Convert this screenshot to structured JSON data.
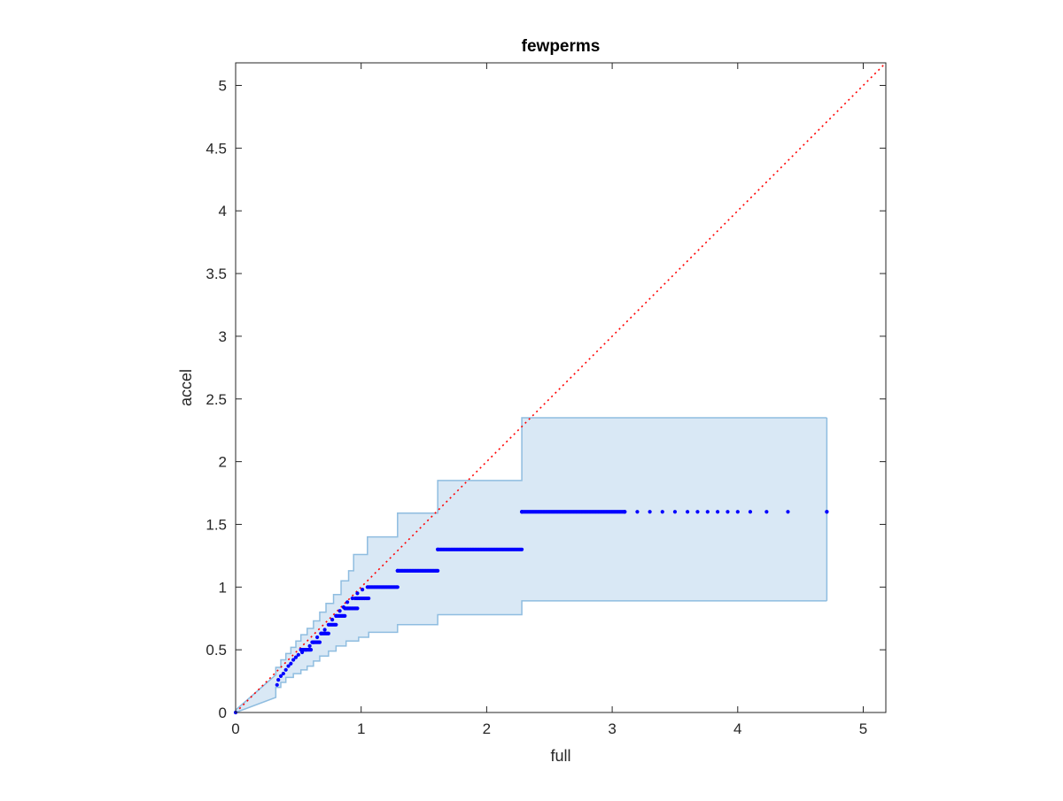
{
  "chart_data": {
    "type": "scatter",
    "title": "fewperms",
    "xlabel": "full",
    "ylabel": "accel",
    "xlim": [
      0,
      5.18
    ],
    "ylim": [
      0,
      5.18
    ],
    "x_ticks": [
      0,
      1,
      2,
      3,
      4,
      5
    ],
    "x_tick_labels": [
      "0",
      "1",
      "2",
      "3",
      "4",
      "5"
    ],
    "y_ticks": [
      0,
      0.5,
      1,
      1.5,
      2,
      2.5,
      3,
      3.5,
      4,
      4.5,
      5
    ],
    "y_tick_labels": [
      "0",
      "0.5",
      "1",
      "1.5",
      "2",
      "2.5",
      "3",
      "3.5",
      "4",
      "4.5",
      "5"
    ],
    "grid": false,
    "reference_line": {
      "style": "dotted",
      "color": "#ff0000",
      "from": [
        0,
        0
      ],
      "to": [
        5.18,
        5.18
      ]
    },
    "band": {
      "fill": "#d9e8f5",
      "stroke": "#8fbde0",
      "upper": [
        [
          0,
          0.02
        ],
        [
          0.32,
          0.3
        ],
        [
          0.32,
          0.36
        ],
        [
          0.36,
          0.36
        ],
        [
          0.36,
          0.42
        ],
        [
          0.4,
          0.42
        ],
        [
          0.4,
          0.47
        ],
        [
          0.44,
          0.47
        ],
        [
          0.44,
          0.52
        ],
        [
          0.48,
          0.52
        ],
        [
          0.48,
          0.57
        ],
        [
          0.52,
          0.57
        ],
        [
          0.52,
          0.62
        ],
        [
          0.57,
          0.62
        ],
        [
          0.57,
          0.67
        ],
        [
          0.62,
          0.67
        ],
        [
          0.62,
          0.73
        ],
        [
          0.67,
          0.73
        ],
        [
          0.67,
          0.8
        ],
        [
          0.72,
          0.8
        ],
        [
          0.72,
          0.87
        ],
        [
          0.78,
          0.87
        ],
        [
          0.78,
          0.94
        ],
        [
          0.84,
          0.94
        ],
        [
          0.84,
          1.05
        ],
        [
          0.9,
          1.05
        ],
        [
          0.9,
          1.13
        ],
        [
          0.94,
          1.13
        ],
        [
          0.94,
          1.26
        ],
        [
          1.05,
          1.26
        ],
        [
          1.05,
          1.4
        ],
        [
          1.29,
          1.4
        ],
        [
          1.29,
          1.59
        ],
        [
          1.61,
          1.59
        ],
        [
          1.61,
          1.85
        ],
        [
          2.28,
          1.85
        ],
        [
          2.28,
          2.35
        ],
        [
          4.71,
          2.35
        ]
      ],
      "lower": [
        [
          0,
          0.0
        ],
        [
          0.32,
          0.12
        ],
        [
          0.32,
          0.2
        ],
        [
          0.36,
          0.2
        ],
        [
          0.36,
          0.24
        ],
        [
          0.4,
          0.24
        ],
        [
          0.4,
          0.28
        ],
        [
          0.46,
          0.28
        ],
        [
          0.46,
          0.31
        ],
        [
          0.52,
          0.31
        ],
        [
          0.52,
          0.34
        ],
        [
          0.57,
          0.34
        ],
        [
          0.57,
          0.37
        ],
        [
          0.62,
          0.37
        ],
        [
          0.62,
          0.41
        ],
        [
          0.67,
          0.41
        ],
        [
          0.67,
          0.45
        ],
        [
          0.74,
          0.45
        ],
        [
          0.74,
          0.49
        ],
        [
          0.8,
          0.49
        ],
        [
          0.8,
          0.53
        ],
        [
          0.88,
          0.53
        ],
        [
          0.88,
          0.57
        ],
        [
          0.98,
          0.57
        ],
        [
          0.98,
          0.6
        ],
        [
          1.06,
          0.6
        ],
        [
          1.06,
          0.64
        ],
        [
          1.29,
          0.64
        ],
        [
          1.29,
          0.7
        ],
        [
          1.61,
          0.7
        ],
        [
          1.61,
          0.78
        ],
        [
          2.28,
          0.78
        ],
        [
          2.28,
          0.89
        ],
        [
          4.71,
          0.89
        ]
      ]
    },
    "series": [
      {
        "color": "#0000ff",
        "points": [
          [
            0,
            0
          ],
          [
            0.33,
            0.22
          ],
          [
            0.34,
            0.26
          ],
          [
            0.36,
            0.29
          ],
          [
            0.38,
            0.31
          ],
          [
            0.4,
            0.34
          ],
          [
            0.42,
            0.37
          ],
          [
            0.44,
            0.39
          ],
          [
            0.46,
            0.42
          ],
          [
            0.48,
            0.44
          ],
          [
            0.5,
            0.46
          ],
          [
            0.53,
            0.48
          ],
          [
            0.56,
            0.5
          ],
          [
            0.59,
            0.53
          ],
          [
            0.62,
            0.56
          ],
          [
            0.65,
            0.6
          ],
          [
            0.68,
            0.63
          ],
          [
            0.71,
            0.66
          ],
          [
            0.74,
            0.7
          ],
          [
            0.77,
            0.74
          ],
          [
            0.8,
            0.77
          ],
          [
            0.83,
            0.81
          ],
          [
            0.86,
            0.84
          ],
          [
            0.89,
            0.88
          ],
          [
            0.93,
            0.91
          ],
          [
            0.97,
            0.95
          ],
          [
            1.01,
            0.98
          ],
          [
            1.05,
            1.0
          ],
          [
            1.29,
            1.13
          ],
          [
            1.61,
            1.3
          ],
          [
            2.28,
            1.6
          ],
          [
            3.1,
            1.6
          ],
          [
            4.71,
            1.6
          ]
        ],
        "runs": [
          {
            "x_from": 0.52,
            "x_to": 0.6,
            "y": 0.5
          },
          {
            "x_from": 0.61,
            "x_to": 0.67,
            "y": 0.56
          },
          {
            "x_from": 0.68,
            "x_to": 0.74,
            "y": 0.63
          },
          {
            "x_from": 0.75,
            "x_to": 0.8,
            "y": 0.7
          },
          {
            "x_from": 0.8,
            "x_to": 0.87,
            "y": 0.77
          },
          {
            "x_from": 0.87,
            "x_to": 0.97,
            "y": 0.83
          },
          {
            "x_from": 0.95,
            "x_to": 1.06,
            "y": 0.91
          },
          {
            "x_from": 1.06,
            "x_to": 1.29,
            "y": 1.0
          },
          {
            "x_from": 1.29,
            "x_to": 1.61,
            "y": 1.13
          },
          {
            "x_from": 1.61,
            "x_to": 2.28,
            "y": 1.3
          },
          {
            "x_from": 2.28,
            "x_to": 3.1,
            "y": 1.6
          }
        ],
        "sparse_tail": [
          3.2,
          3.3,
          3.4,
          3.5,
          3.6,
          3.68,
          3.76,
          3.84,
          3.92,
          4.0,
          4.1,
          4.23,
          4.4,
          4.71
        ],
        "sparse_tail_y": 1.6
      }
    ]
  }
}
